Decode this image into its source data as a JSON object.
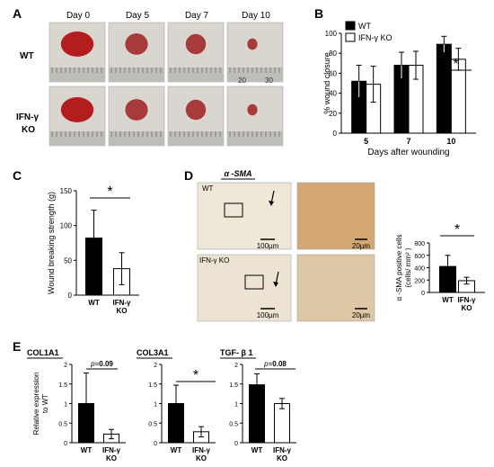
{
  "panels": {
    "A": {
      "label": "A",
      "day_headers": [
        "Day 0",
        "Day 5",
        "Day 7",
        "Day 10"
      ],
      "row_labels": [
        "WT",
        "IFN-γ",
        "KO"
      ],
      "ruler_text": [
        "20",
        "30"
      ]
    },
    "B": {
      "label": "B"
    },
    "C": {
      "label": "C"
    },
    "D": {
      "label": "D",
      "stain": "α -SMA",
      "tag_wt": "WT",
      "tag_ko": "IFN-γ  KO",
      "scale_big": "100µm",
      "scale_small": "20µm"
    },
    "E": {
      "label": "E"
    }
  },
  "chart_data": [
    {
      "id": "B",
      "type": "bar",
      "categories": [
        "5",
        "7",
        "10"
      ],
      "series": [
        {
          "name": "WT",
          "values": [
            52,
            68,
            89
          ],
          "err": [
            16,
            13,
            8
          ],
          "color": "#000000"
        },
        {
          "name": "IFN-γ  KO",
          "values": [
            49,
            68,
            74
          ],
          "err": [
            18,
            14,
            11
          ],
          "color": "#ffffff"
        }
      ],
      "ylabel": "% wound closure",
      "xlabel": "Days after wounding",
      "ylim": [
        0,
        100
      ],
      "yticks": [
        0,
        20,
        40,
        60,
        80,
        100
      ],
      "significance": "*",
      "legend": "top-left"
    },
    {
      "id": "C",
      "type": "bar",
      "categories": [
        "WT",
        "IFN-γ\nKO"
      ],
      "values": [
        82,
        38
      ],
      "err": [
        40,
        23
      ],
      "colors": [
        "#000000",
        "#ffffff"
      ],
      "ylabel": "Wound breaking strength (g)",
      "ylim": [
        0,
        150
      ],
      "yticks": [
        0,
        50,
        100,
        150
      ],
      "significance": "*"
    },
    {
      "id": "D",
      "type": "bar",
      "categories": [
        "WT",
        "IFN-γ\nKO"
      ],
      "values": [
        420,
        190
      ],
      "err": [
        180,
        55
      ],
      "colors": [
        "#000000",
        "#ffffff"
      ],
      "ylabel": "α -SMA positive cells (cells/ mm² )",
      "ylim": [
        0,
        800
      ],
      "yticks": [
        0,
        200,
        400,
        600,
        800
      ],
      "significance": "*"
    },
    {
      "id": "E1",
      "type": "bar",
      "title": "COL1A1",
      "categories": [
        "WT",
        "IFN-γ\nKO"
      ],
      "values": [
        1.0,
        0.22
      ],
      "err": [
        0.78,
        0.12
      ],
      "colors": [
        "#000000",
        "#ffffff"
      ],
      "ylabel": "Relative expression to WT",
      "ylim": [
        0,
        2
      ],
      "yticks": [
        0,
        0.5,
        1,
        1.5,
        2
      ],
      "significance_p": "0.09",
      "significance_prefix": "p="
    },
    {
      "id": "E2",
      "type": "bar",
      "title": "COL3A1",
      "categories": [
        "WT",
        "IFN-γ\nKO"
      ],
      "values": [
        1.0,
        0.28
      ],
      "err": [
        0.47,
        0.13
      ],
      "colors": [
        "#000000",
        "#ffffff"
      ],
      "ylim": [
        0,
        2
      ],
      "yticks": [
        0,
        0.5,
        1,
        1.5,
        2
      ],
      "significance": "*"
    },
    {
      "id": "E3",
      "type": "bar",
      "title": "TGF- β 1",
      "categories": [
        "WT",
        "IFN-γ\nKO"
      ],
      "values": [
        1.48,
        1.0
      ],
      "err": [
        0.28,
        0.13
      ],
      "colors": [
        "#000000",
        "#ffffff"
      ],
      "ylim": [
        0,
        2
      ],
      "yticks": [
        0,
        0.5,
        1,
        1.5,
        2
      ],
      "significance_p": "0.08",
      "significance_prefix": "p="
    }
  ]
}
